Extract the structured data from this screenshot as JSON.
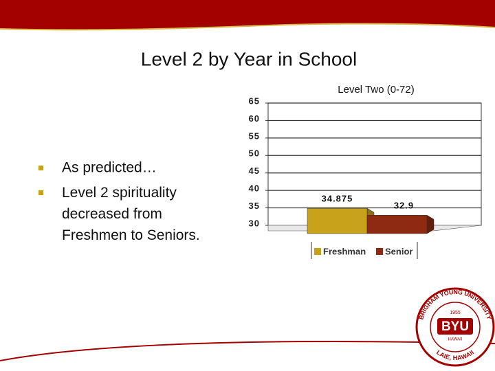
{
  "title": "Level 2 by Year in School",
  "bullets": [
    "As predicted…",
    "Level 2 spirituality decreased from Freshmen to Seniors."
  ],
  "logo": {
    "ring_top": "BRIGHAM YOUNG UNIVERSITY",
    "ring_bottom": "LAIE, HAWAII",
    "year": "1955",
    "name": "BYU",
    "sub": "HAWAII"
  },
  "chart_data": {
    "type": "bar3d",
    "title": "Level Two (0-72)",
    "series": [
      {
        "name": "Freshman",
        "color": "#c9a21c",
        "values": [
          34.875
        ]
      },
      {
        "name": "Senior",
        "color": "#8e2a12",
        "values": [
          32.9
        ]
      }
    ],
    "ylim": [
      30,
      65
    ],
    "yticks": [
      30,
      35,
      40,
      45,
      50,
      55,
      60,
      65
    ],
    "grid": true
  }
}
